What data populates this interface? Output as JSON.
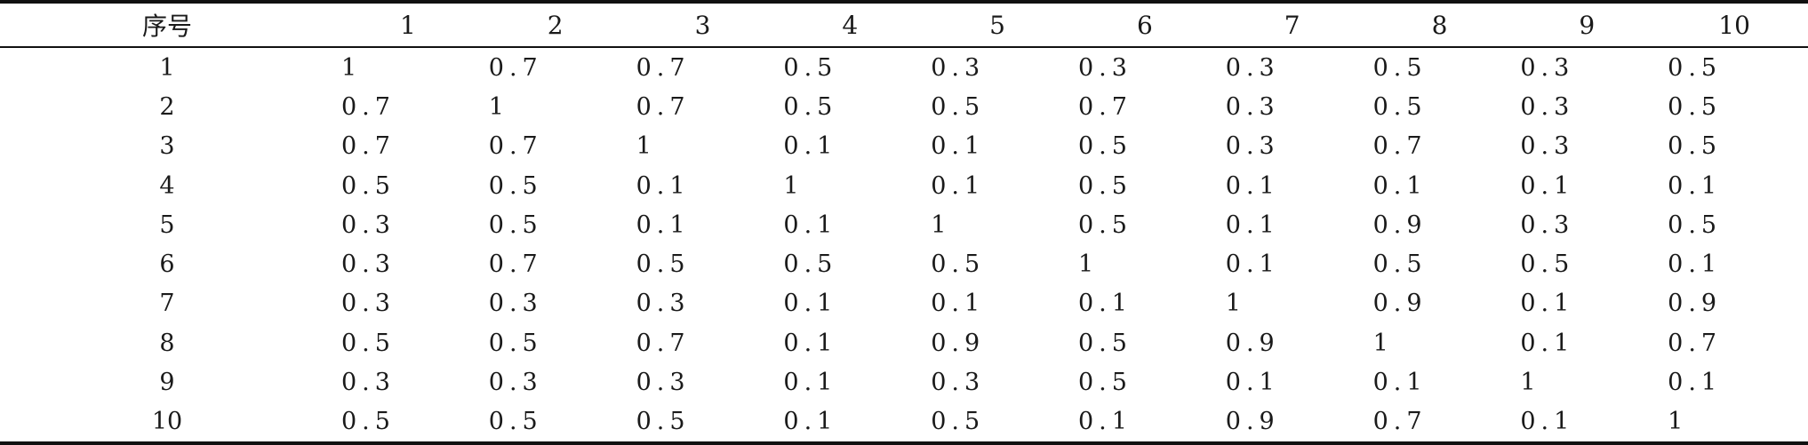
{
  "table": {
    "header": [
      "序号",
      "1",
      "2",
      "3",
      "4",
      "5",
      "6",
      "7",
      "8",
      "9",
      "10"
    ],
    "rows": [
      [
        "1",
        "1",
        "0.7",
        "0.7",
        "0.5",
        "0.3",
        "0.3",
        "0.3",
        "0.5",
        "0.3",
        "0.5"
      ],
      [
        "2",
        "0.7",
        "1",
        "0.7",
        "0.5",
        "0.5",
        "0.7",
        "0.3",
        "0.5",
        "0.3",
        "0.5"
      ],
      [
        "3",
        "0.7",
        "0.7",
        "1",
        "0.1",
        "0.1",
        "0.5",
        "0.3",
        "0.7",
        "0.3",
        "0.5"
      ],
      [
        "4",
        "0.5",
        "0.5",
        "0.1",
        "1",
        "0.1",
        "0.5",
        "0.1",
        "0.1",
        "0.1",
        "0.1"
      ],
      [
        "5",
        "0.3",
        "0.5",
        "0.1",
        "0.1",
        "1",
        "0.5",
        "0.1",
        "0.9",
        "0.3",
        "0.5"
      ],
      [
        "6",
        "0.3",
        "0.7",
        "0.5",
        "0.5",
        "0.5",
        "1",
        "0.1",
        "0.5",
        "0.5",
        "0.1"
      ],
      [
        "7",
        "0.3",
        "0.3",
        "0.3",
        "0.1",
        "0.1",
        "0.1",
        "1",
        "0.9",
        "0.1",
        "0.9"
      ],
      [
        "8",
        "0.5",
        "0.5",
        "0.7",
        "0.1",
        "0.9",
        "0.5",
        "0.9",
        "1",
        "0.1",
        "0.7"
      ],
      [
        "9",
        "0.3",
        "0.3",
        "0.3",
        "0.1",
        "0.3",
        "0.5",
        "0.1",
        "0.1",
        "1",
        "0.1"
      ],
      [
        "10",
        "0.5",
        "0.5",
        "0.5",
        "0.1",
        "0.5",
        "0.1",
        "0.9",
        "0.7",
        "0.1",
        "1"
      ]
    ]
  }
}
